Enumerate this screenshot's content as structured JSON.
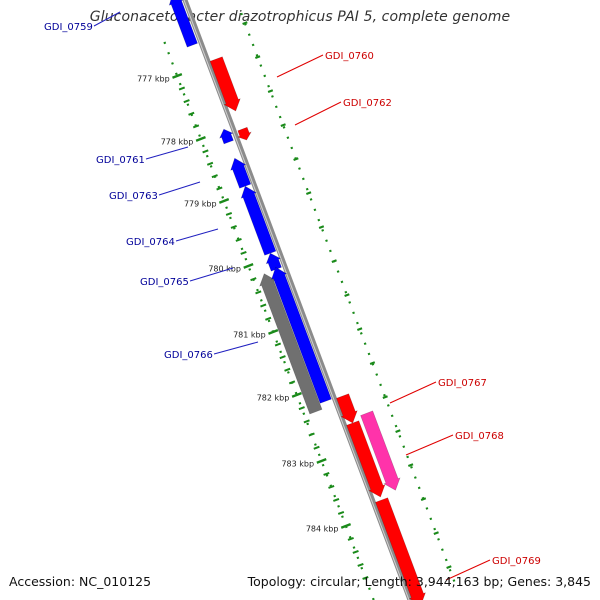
{
  "title": "Gluconacetobacter diazotrophicus PAI 5, complete genome",
  "footer": {
    "accession": "Accession: NC_010125",
    "topology": "Topology: circular; Length: 3,944,163 bp; Genes: 3,845"
  },
  "colors": {
    "backbone": "#8c8c8c",
    "forward_strand": "#ff0000",
    "reverse_strand": "#0000ff",
    "rna_gene": "#ff33aa",
    "pseudogene": "#707070",
    "forward_label": "#cc0000",
    "reverse_label": "#000099",
    "tick": "#1a8a1a",
    "scale_label": "#222222"
  },
  "scale": {
    "labels": [
      "777 kbp",
      "778 kbp",
      "779 kbp",
      "780 kbp",
      "781 kbp",
      "782 kbp",
      "783 kbp",
      "784 kbp"
    ]
  },
  "genes": [
    {
      "name": "GDI_0759",
      "strand": "reverse",
      "type": "cds"
    },
    {
      "name": "GDI_0760",
      "strand": "forward",
      "type": "cds"
    },
    {
      "name": "GDI_0761",
      "strand": "reverse",
      "type": "cds"
    },
    {
      "name": "GDI_0762",
      "strand": "forward",
      "type": "cds"
    },
    {
      "name": "GDI_0763",
      "strand": "reverse",
      "type": "cds"
    },
    {
      "name": "GDI_0764",
      "strand": "reverse",
      "type": "cds"
    },
    {
      "name": "GDI_0765",
      "strand": "reverse",
      "type": "cds"
    },
    {
      "name": "GDI_0766",
      "strand": "reverse",
      "type": "pseudogene"
    },
    {
      "name": "GDI_0767",
      "strand": "forward",
      "type": "cds"
    },
    {
      "name": "GDI_0768",
      "strand": "forward",
      "type": "rna"
    },
    {
      "name": "GDI_0769",
      "strand": "forward",
      "type": "cds"
    }
  ]
}
